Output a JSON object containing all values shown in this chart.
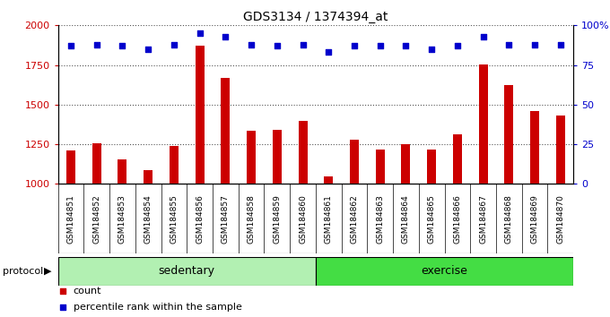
{
  "title": "GDS3134 / 1374394_at",
  "samples": [
    "GSM184851",
    "GSM184852",
    "GSM184853",
    "GSM184854",
    "GSM184855",
    "GSM184856",
    "GSM184857",
    "GSM184858",
    "GSM184859",
    "GSM184860",
    "GSM184861",
    "GSM184862",
    "GSM184863",
    "GSM184864",
    "GSM184865",
    "GSM184866",
    "GSM184867",
    "GSM184868",
    "GSM184869",
    "GSM184870"
  ],
  "counts": [
    1210,
    1255,
    1155,
    1085,
    1240,
    1870,
    1670,
    1335,
    1340,
    1395,
    1045,
    1280,
    1215,
    1250,
    1215,
    1310,
    1755,
    1625,
    1460,
    1430
  ],
  "percentiles": [
    87,
    88,
    87,
    85,
    88,
    95,
    93,
    88,
    87,
    88,
    83,
    87,
    87,
    87,
    85,
    87,
    93,
    88,
    88,
    88
  ],
  "ylim_left": [
    1000,
    2000
  ],
  "ylim_right": [
    0,
    100
  ],
  "yticks_left": [
    1000,
    1250,
    1500,
    1750,
    2000
  ],
  "yticks_right": [
    0,
    25,
    50,
    75,
    100
  ],
  "bar_color": "#cc0000",
  "dot_color": "#0000cc",
  "plot_bg": "#ffffff",
  "xlabel_bg": "#c8c8c8",
  "sedentary_color": "#b2f0b2",
  "exercise_color": "#44dd44",
  "sedentary_samples": 10,
  "exercise_samples": 10,
  "grid_color": "#555555",
  "ylabel_left_color": "#cc0000",
  "ylabel_right_color": "#0000cc",
  "bar_width": 0.35
}
